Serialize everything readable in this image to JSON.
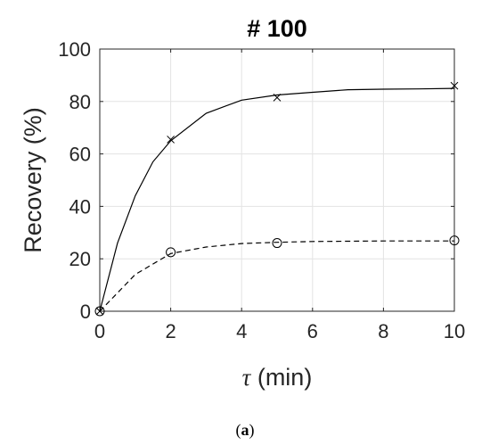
{
  "chart_data": {
    "type": "line",
    "title": "# 100",
    "xlabel_symbol": "τ",
    "xlabel_unit": " (min)",
    "ylabel": "Recovery (%)",
    "xlim": [
      0,
      10
    ],
    "ylim": [
      0,
      100
    ],
    "xticks": [
      0,
      2,
      4,
      6,
      8,
      10
    ],
    "yticks": [
      0,
      20,
      40,
      60,
      80,
      100
    ],
    "grid": true,
    "series": [
      {
        "style": "solid-line",
        "color": "#000000",
        "x": [
          0,
          0.5,
          1,
          1.5,
          2,
          3,
          4,
          5,
          6,
          7,
          8,
          9,
          10
        ],
        "y": [
          0,
          26,
          44,
          57,
          65,
          75.5,
          80.5,
          82.5,
          83.5,
          84.5,
          84.7,
          84.8,
          85
        ]
      },
      {
        "style": "dashed-line",
        "color": "#000000",
        "x": [
          0,
          1,
          2,
          3,
          4,
          5,
          6,
          7,
          8,
          9,
          10
        ],
        "y": [
          0,
          14,
          22,
          24.5,
          25.8,
          26.3,
          26.6,
          26.7,
          26.8,
          26.8,
          26.8
        ]
      },
      {
        "style": "x-marker",
        "color": "#000000",
        "x": [
          0,
          2,
          5,
          10
        ],
        "y": [
          0,
          65.5,
          81.5,
          86
        ]
      },
      {
        "style": "o-marker",
        "color": "#000000",
        "x": [
          0,
          2,
          5,
          10
        ],
        "y": [
          0,
          22.5,
          26,
          27
        ]
      }
    ]
  },
  "caption": {
    "open": "(",
    "letter": "a",
    "close": ")"
  }
}
